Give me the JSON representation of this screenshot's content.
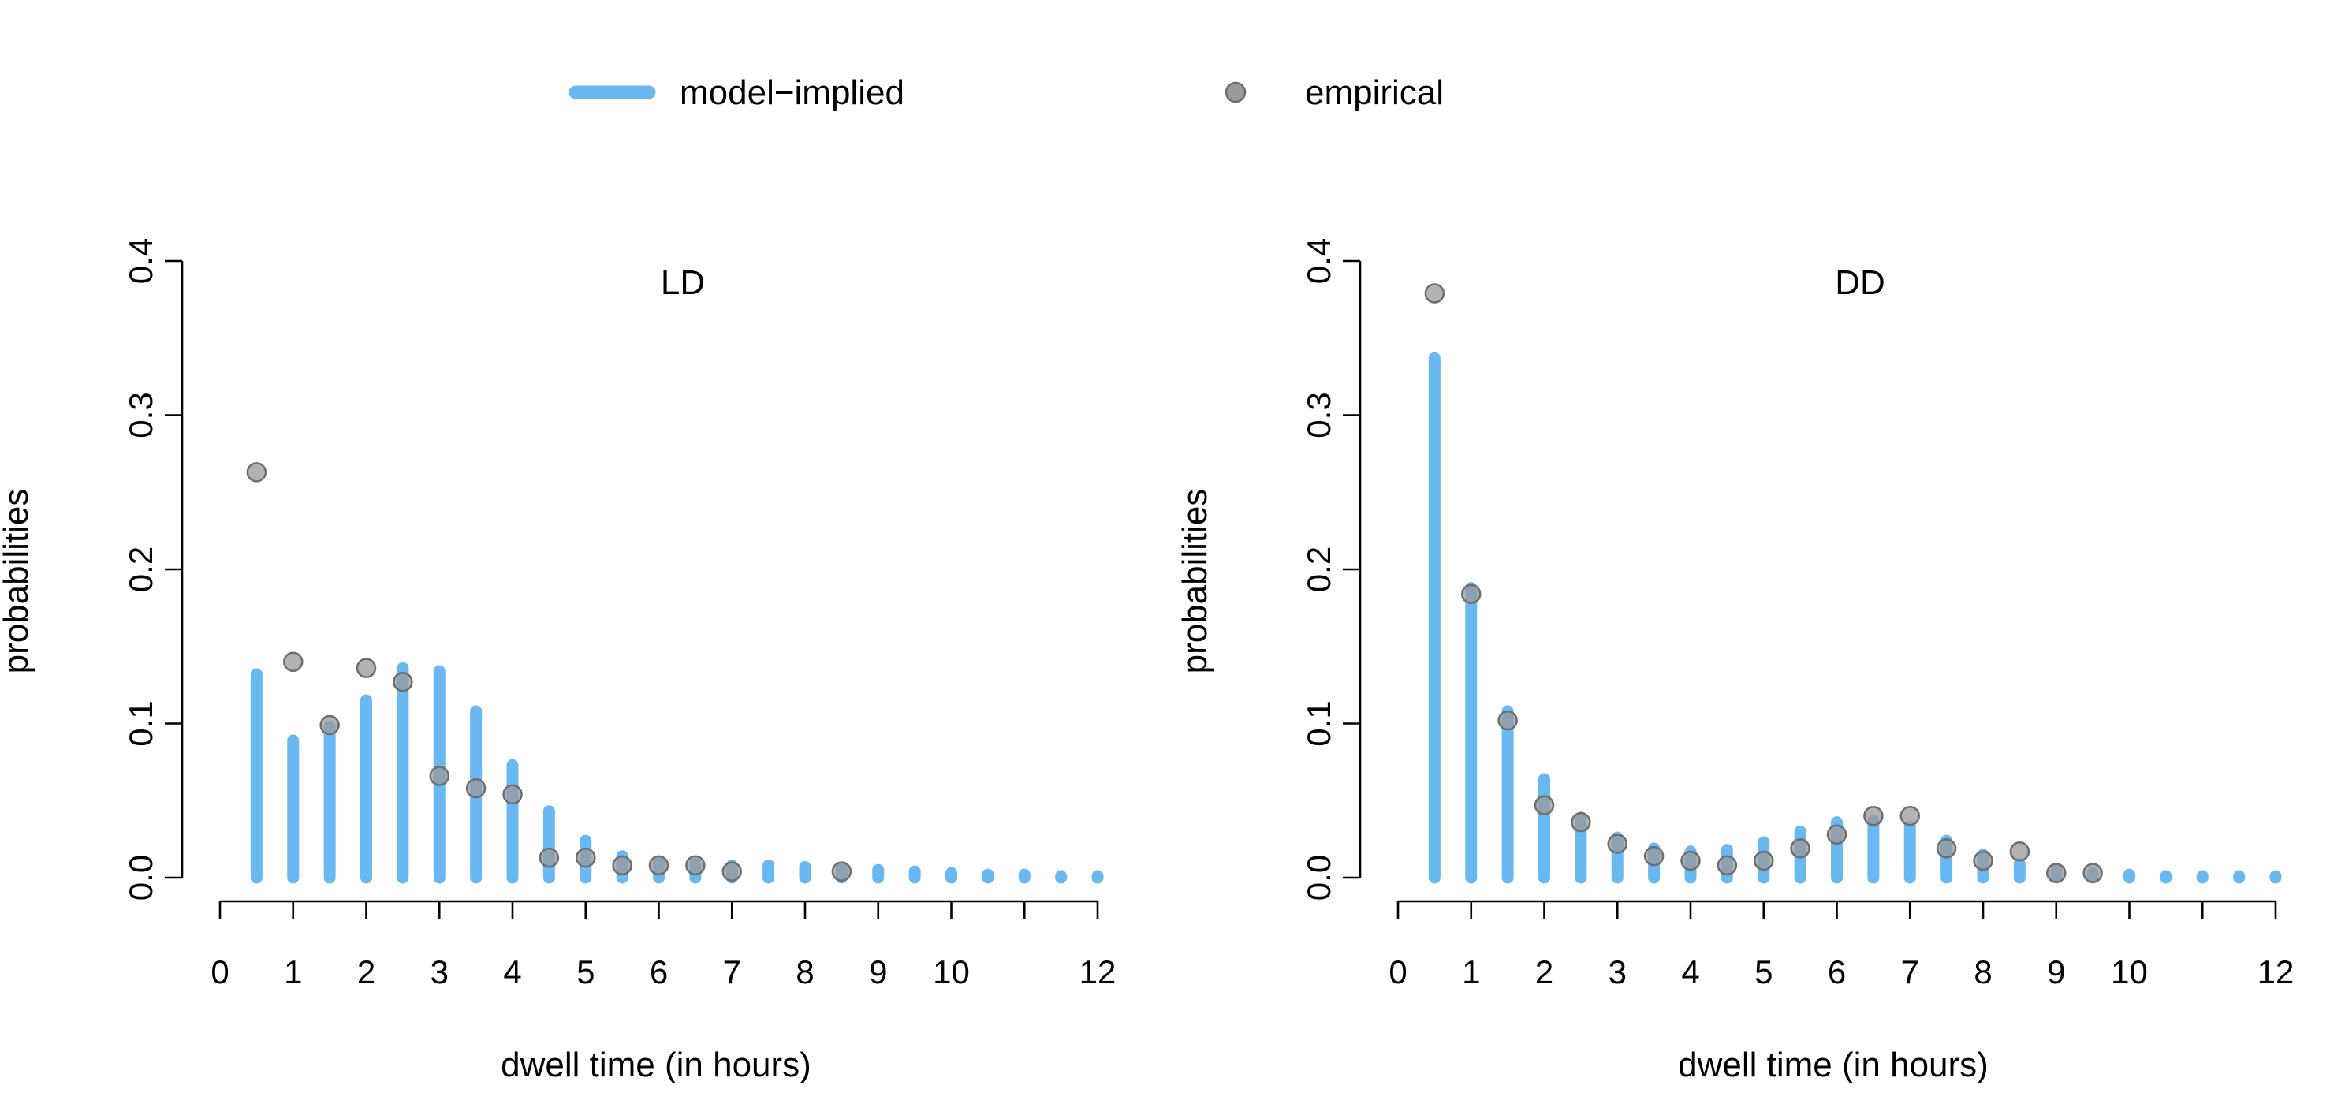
{
  "legend": {
    "model_label": "model−implied",
    "empirical_label": "empirical"
  },
  "colors": {
    "model": "#6ab8f2",
    "empirical_fill": "#9a9a9a",
    "empirical_stroke": "#6e6e6e"
  },
  "chart_data": [
    {
      "type": "bar",
      "title": "LD",
      "xlabel": "dwell time (in hours)",
      "ylabel": "probabilities",
      "xlim": [
        0,
        12
      ],
      "ylim": [
        0,
        0.4
      ],
      "x_ticks": [
        0,
        1,
        2,
        3,
        4,
        5,
        6,
        7,
        8,
        9,
        10,
        12
      ],
      "x_tick_labels": [
        "0",
        "1",
        "2",
        "3",
        "4",
        "5",
        "6",
        "7",
        "8",
        "9",
        "10",
        "12"
      ],
      "y_ticks": [
        0,
        0.1,
        0.2,
        0.3,
        0.4
      ],
      "y_tick_labels": [
        "0.0",
        "0.1",
        "0.2",
        "0.3",
        "0.4"
      ],
      "grid": false,
      "series": [
        {
          "name": "model−implied",
          "style": "spikes",
          "x": [
            0.5,
            1,
            1.5,
            2,
            2.5,
            3,
            3.5,
            4,
            4.5,
            5,
            5.5,
            6,
            6.5,
            7,
            7.5,
            8,
            8.5,
            9,
            9.5,
            10,
            10.5,
            11,
            11.5,
            12
          ],
          "values": [
            0.132,
            0.089,
            0.098,
            0.115,
            0.136,
            0.134,
            0.108,
            0.073,
            0.043,
            0.024,
            0.014,
            0.01,
            0.009,
            0.008,
            0.008,
            0.007,
            0.006,
            0.005,
            0.004,
            0.003,
            0.002,
            0.002,
            0.001,
            0.001
          ]
        },
        {
          "name": "empirical",
          "style": "points",
          "x": [
            0.5,
            1,
            1.5,
            2,
            2.5,
            3,
            3.5,
            4,
            4.5,
            5,
            5.5,
            6,
            6.5,
            7,
            8.5
          ],
          "values": [
            0.263,
            0.14,
            0.099,
            0.136,
            0.127,
            0.066,
            0.058,
            0.054,
            0.013,
            0.013,
            0.008,
            0.008,
            0.008,
            0.004,
            0.004
          ]
        }
      ]
    },
    {
      "type": "bar",
      "title": "DD",
      "xlabel": "dwell time (in hours)",
      "ylabel": "probabilities",
      "xlim": [
        0,
        12
      ],
      "ylim": [
        0,
        0.4
      ],
      "x_ticks": [
        0,
        1,
        2,
        3,
        4,
        5,
        6,
        7,
        8,
        9,
        10,
        12
      ],
      "x_tick_labels": [
        "0",
        "1",
        "2",
        "3",
        "4",
        "5",
        "6",
        "7",
        "8",
        "9",
        "10",
        "12"
      ],
      "y_ticks": [
        0,
        0.1,
        0.2,
        0.3,
        0.4
      ],
      "y_tick_labels": [
        "0.0",
        "0.1",
        "0.2",
        "0.3",
        "0.4"
      ],
      "grid": false,
      "series": [
        {
          "name": "model−implied",
          "style": "spikes",
          "x": [
            0.5,
            1,
            1.5,
            2,
            2.5,
            3,
            3.5,
            4,
            4.5,
            5,
            5.5,
            6,
            6.5,
            7,
            7.5,
            8,
            8.5,
            9,
            9.5,
            10,
            10.5,
            11,
            11.5,
            12
          ],
          "values": [
            0.337,
            0.188,
            0.108,
            0.064,
            0.039,
            0.026,
            0.019,
            0.017,
            0.018,
            0.023,
            0.03,
            0.036,
            0.037,
            0.033,
            0.024,
            0.015,
            0.009,
            0.005,
            0.003,
            0.002,
            0.001,
            0.001,
            0.001,
            0.001
          ]
        },
        {
          "name": "empirical",
          "style": "points",
          "x": [
            0.5,
            1,
            1.5,
            2,
            2.5,
            3,
            3.5,
            4,
            4.5,
            5,
            5.5,
            6,
            6.5,
            7,
            7.5,
            8,
            8.5,
            9,
            9.5
          ],
          "values": [
            0.379,
            0.184,
            0.102,
            0.047,
            0.036,
            0.022,
            0.014,
            0.011,
            0.008,
            0.011,
            0.019,
            0.028,
            0.04,
            0.04,
            0.019,
            0.011,
            0.017,
            0.003,
            0.003
          ]
        }
      ]
    }
  ]
}
